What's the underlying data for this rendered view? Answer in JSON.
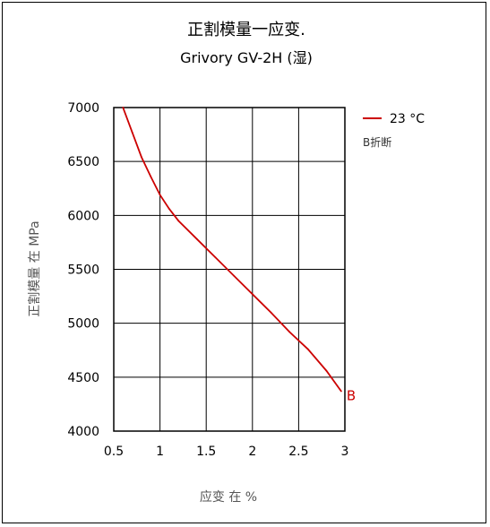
{
  "chart_data": {
    "type": "line",
    "title": "正割模量一应变.",
    "subtitle": "Grivory GV-2H (湿)",
    "xlabel": "应变 在 %",
    "ylabel": "正割模量 在 MPa",
    "xlim": [
      0.5,
      3
    ],
    "ylim": [
      4000,
      7000
    ],
    "x_ticks": [
      "0.5",
      "1",
      "1.5",
      "2",
      "2.5",
      "3"
    ],
    "y_ticks": [
      "4000",
      "4500",
      "5000",
      "5500",
      "6000",
      "6500",
      "7000"
    ],
    "grid": true,
    "legend_position": "top-right",
    "series": [
      {
        "name": "23 °C",
        "color": "#cc0000",
        "x": [
          0.6,
          0.7,
          0.8,
          0.9,
          1.0,
          1.1,
          1.2,
          1.4,
          1.6,
          1.8,
          2.0,
          2.2,
          2.4,
          2.6,
          2.8,
          2.96
        ],
        "y": [
          7000,
          6770,
          6540,
          6360,
          6190,
          6060,
          5950,
          5780,
          5610,
          5440,
          5270,
          5100,
          4920,
          4760,
          4560,
          4370
        ]
      }
    ],
    "annotations": [
      {
        "text": "B",
        "x": 2.96,
        "y": 4370
      }
    ],
    "legend_notes": [
      "B折断"
    ]
  }
}
